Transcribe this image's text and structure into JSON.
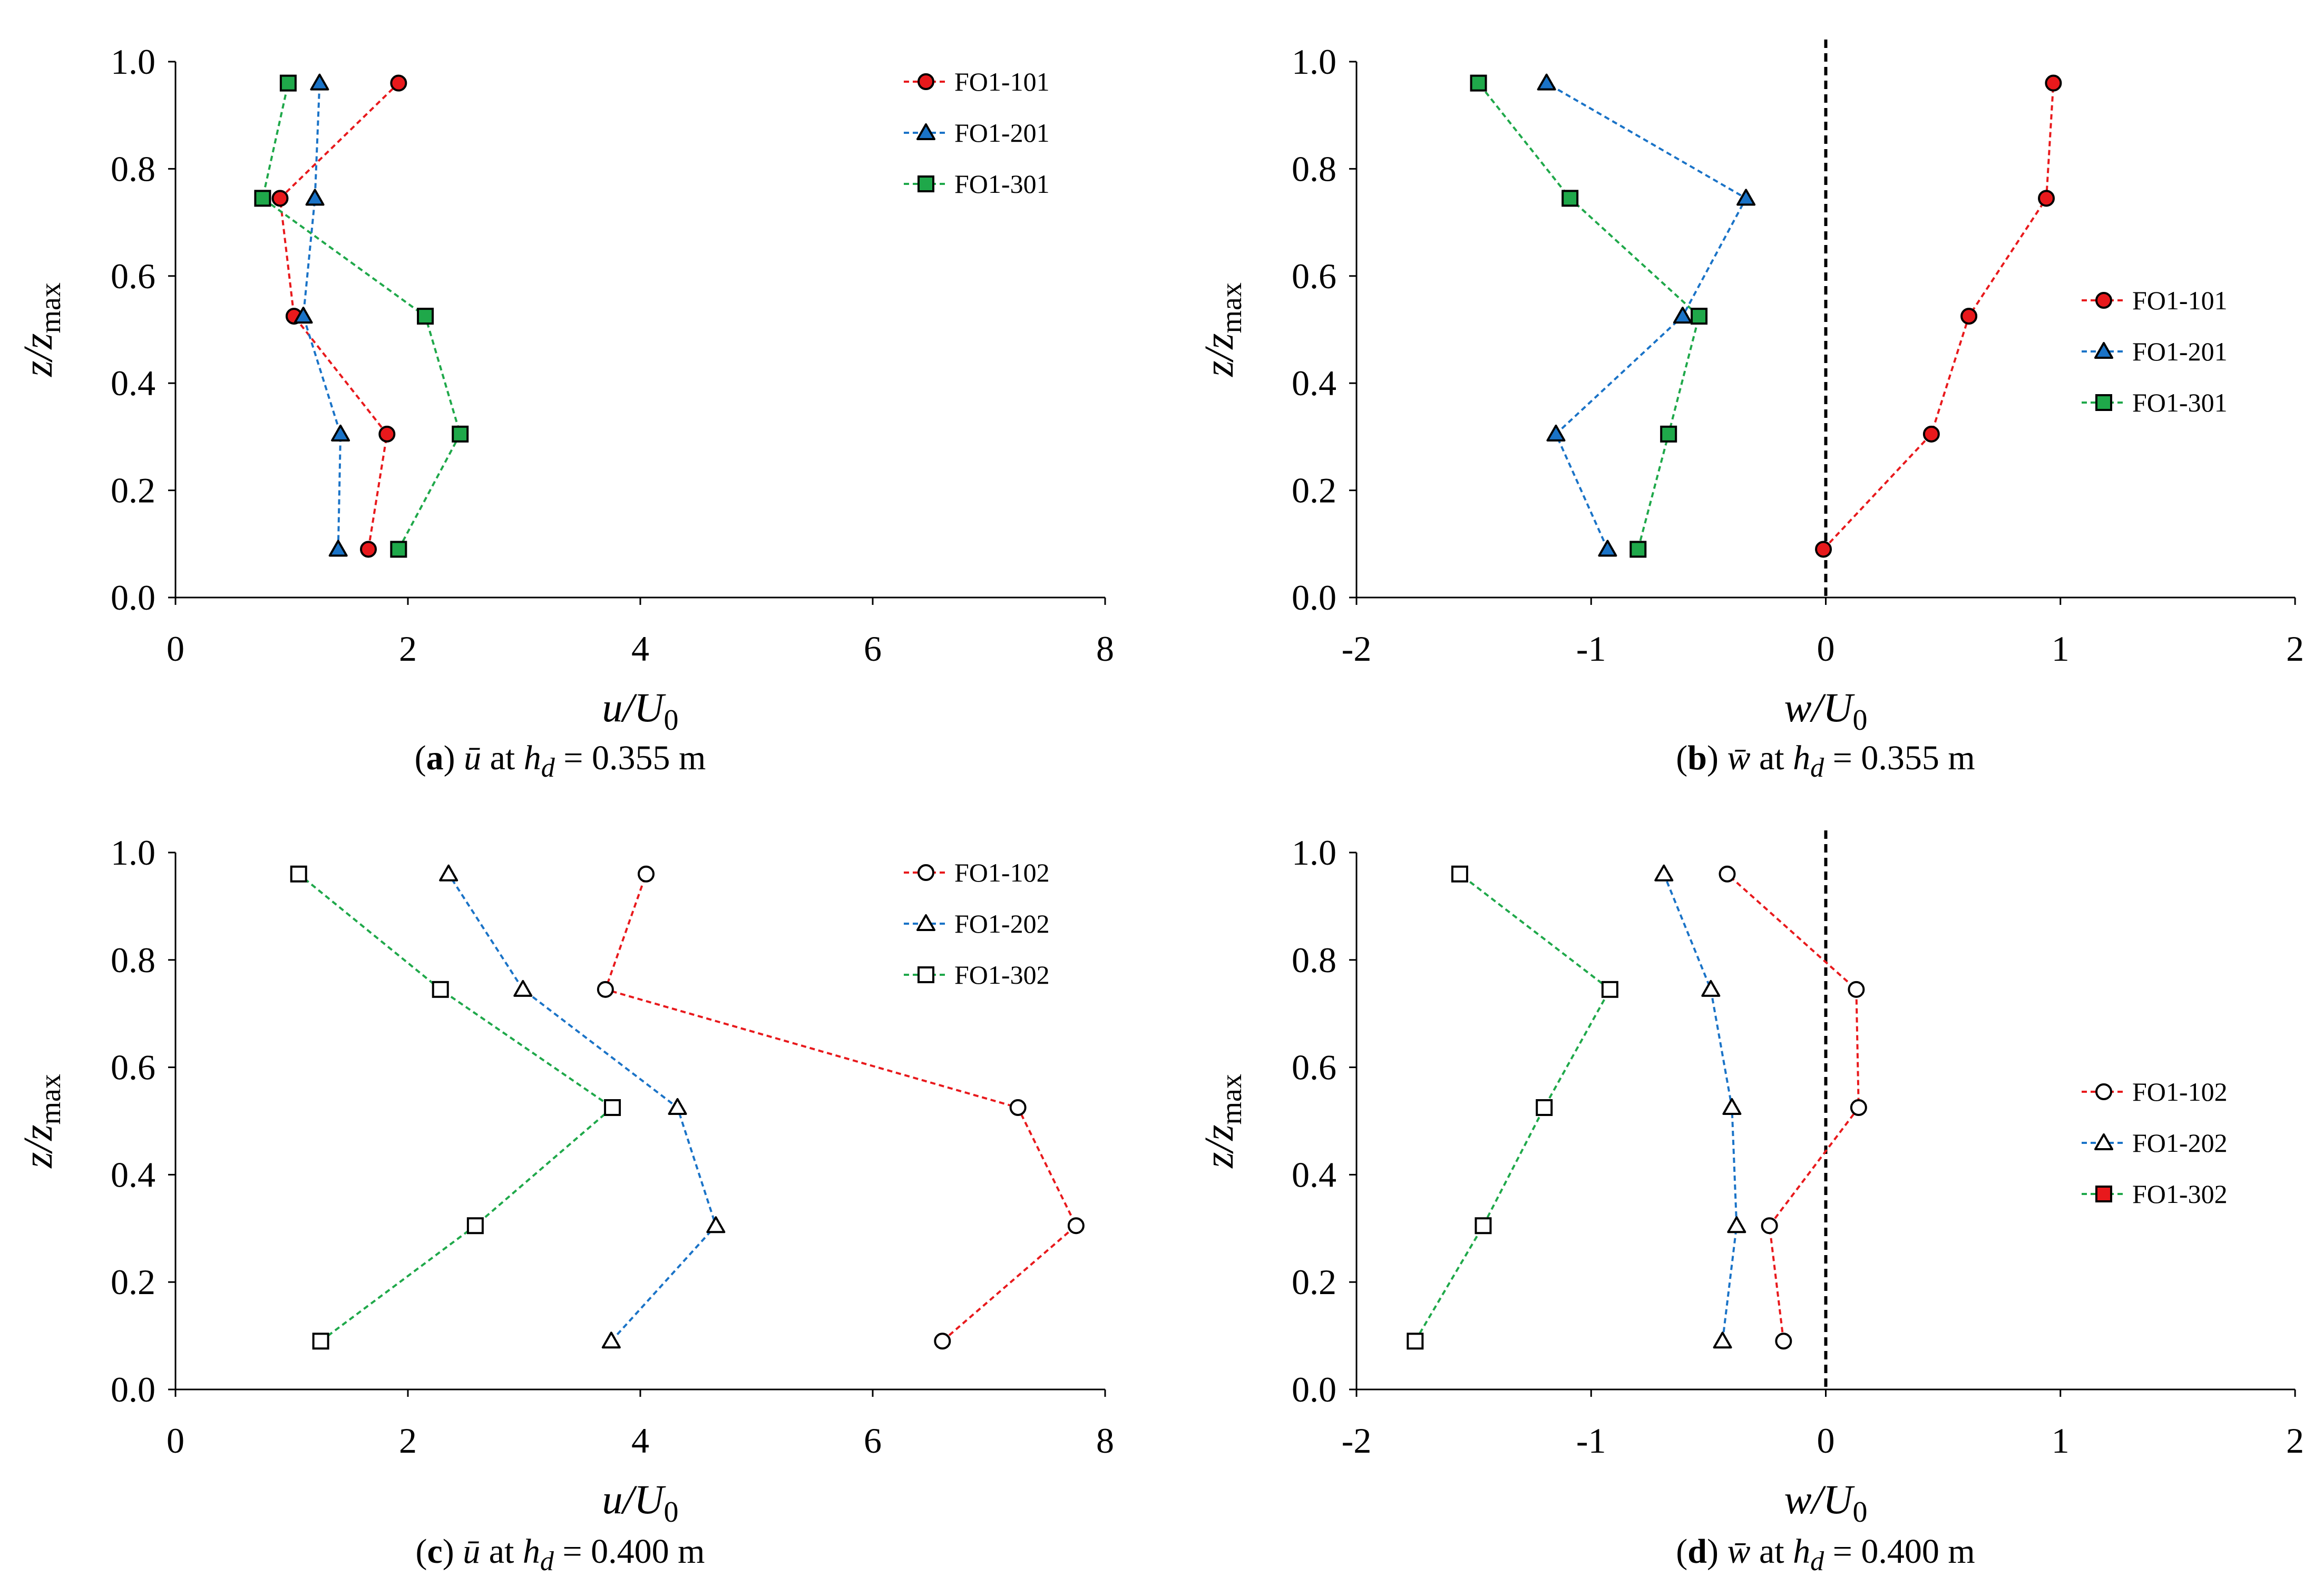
{
  "chart_data": [
    {
      "id": "a",
      "type": "line",
      "marker_style": "filled",
      "xlabel_var": "u",
      "xlabel_den": "U",
      "xlabel_sub": "0",
      "ylabel_var": "z",
      "ylabel_den": "z",
      "ylabel_sub": "max",
      "xlim": [
        0,
        8
      ],
      "ylim": [
        0,
        1.0
      ],
      "xticks": [
        "0",
        "2",
        "4",
        "6",
        "8"
      ],
      "yticks": [
        "0.0",
        "0.2",
        "0.4",
        "0.6",
        "0.8",
        "1.0"
      ],
      "zero_line": false,
      "legend_position": "top-right",
      "caption": {
        "letter": "a",
        "symbol": "ū",
        "at": "at",
        "h": "h",
        "hsub": "d",
        "value": "= 0.355 m"
      },
      "series": [
        {
          "name": "FO1-101",
          "marker": "circle",
          "color": "#e8191c",
          "fill": "#e8191c",
          "line_color": "#e8191c",
          "points": [
            [
              1.66,
              0.09
            ],
            [
              1.82,
              0.305
            ],
            [
              1.02,
              0.525
            ],
            [
              0.9,
              0.745
            ],
            [
              1.92,
              0.96
            ]
          ]
        },
        {
          "name": "FO1-201",
          "marker": "triangle",
          "color": "#1a73c7",
          "fill": "#1a73c7",
          "line_color": "#1a73c7",
          "points": [
            [
              1.4,
              0.09
            ],
            [
              1.42,
              0.305
            ],
            [
              1.1,
              0.525
            ],
            [
              1.2,
              0.745
            ],
            [
              1.24,
              0.96
            ]
          ]
        },
        {
          "name": "FO1-301",
          "marker": "square",
          "color": "#1fa84a",
          "fill": "#1fa84a",
          "line_color": "#1fa84a",
          "points": [
            [
              1.92,
              0.09
            ],
            [
              2.45,
              0.305
            ],
            [
              2.15,
              0.525
            ],
            [
              0.75,
              0.745
            ],
            [
              0.97,
              0.96
            ]
          ]
        }
      ]
    },
    {
      "id": "b",
      "type": "line",
      "marker_style": "filled",
      "xlabel_var": "w",
      "xlabel_den": "U",
      "xlabel_sub": "0",
      "ylabel_var": "z",
      "ylabel_den": "z",
      "ylabel_sub": "max",
      "xlim": [
        -2,
        2
      ],
      "ylim": [
        0,
        1.0
      ],
      "xticks": [
        "-2",
        "-1",
        "0",
        "1",
        "2"
      ],
      "yticks": [
        "0.0",
        "0.2",
        "0.4",
        "0.6",
        "0.8",
        "1.0"
      ],
      "zero_line": true,
      "legend_position": "right",
      "caption": {
        "letter": "b",
        "symbol": "w̄",
        "at": "at",
        "h": "h",
        "hsub": "d",
        "value": "= 0.355 m"
      },
      "series": [
        {
          "name": "FO1-101",
          "marker": "circle",
          "color": "#e8191c",
          "fill": "#e8191c",
          "line_color": "#e8191c",
          "points": [
            [
              -0.01,
              0.09
            ],
            [
              0.45,
              0.305
            ],
            [
              0.61,
              0.525
            ],
            [
              0.94,
              0.745
            ],
            [
              0.97,
              0.96
            ]
          ]
        },
        {
          "name": "FO1-201",
          "marker": "triangle",
          "color": "#1a73c7",
          "fill": "#1a73c7",
          "line_color": "#1a73c7",
          "points": [
            [
              -0.93,
              0.09
            ],
            [
              -1.15,
              0.305
            ],
            [
              -0.61,
              0.525
            ],
            [
              -0.34,
              0.745
            ],
            [
              -1.19,
              0.96
            ]
          ]
        },
        {
          "name": "FO1-301",
          "marker": "square",
          "color": "#1fa84a",
          "fill": "#1fa84a",
          "line_color": "#1fa84a",
          "points": [
            [
              -0.8,
              0.09
            ],
            [
              -0.67,
              0.305
            ],
            [
              -0.54,
              0.525
            ],
            [
              -1.09,
              0.745
            ],
            [
              -1.48,
              0.96
            ]
          ]
        }
      ]
    },
    {
      "id": "c",
      "type": "line",
      "marker_style": "hollow",
      "xlabel_var": "u",
      "xlabel_den": "U",
      "xlabel_sub": "0",
      "ylabel_var": "z",
      "ylabel_den": "z",
      "ylabel_sub": "max",
      "xlim": [
        0,
        8
      ],
      "ylim": [
        0,
        1.0
      ],
      "xticks": [
        "0",
        "2",
        "4",
        "6",
        "8"
      ],
      "yticks": [
        "0.0",
        "0.2",
        "0.4",
        "0.6",
        "0.8",
        "1.0"
      ],
      "zero_line": false,
      "legend_position": "top-right",
      "caption": {
        "letter": "c",
        "symbol": "ū",
        "at": "at",
        "h": "h",
        "hsub": "d",
        "value": "= 0.400 m"
      },
      "series": [
        {
          "name": "FO1-102",
          "marker": "circle",
          "color": "#000000",
          "fill": "#ffffff",
          "line_color": "#e8191c",
          "points": [
            [
              6.6,
              0.09
            ],
            [
              7.75,
              0.305
            ],
            [
              7.25,
              0.525
            ],
            [
              3.7,
              0.745
            ],
            [
              4.05,
              0.96
            ]
          ]
        },
        {
          "name": "FO1-202",
          "marker": "triangle",
          "color": "#000000",
          "fill": "#ffffff",
          "line_color": "#1a73c7",
          "points": [
            [
              3.75,
              0.09
            ],
            [
              4.65,
              0.305
            ],
            [
              4.32,
              0.525
            ],
            [
              2.99,
              0.745
            ],
            [
              2.35,
              0.96
            ]
          ]
        },
        {
          "name": "FO1-302",
          "marker": "square",
          "color": "#000000",
          "fill": "#ffffff",
          "line_color": "#1fa84a",
          "points": [
            [
              1.25,
              0.09
            ],
            [
              2.58,
              0.305
            ],
            [
              3.76,
              0.525
            ],
            [
              2.28,
              0.745
            ],
            [
              1.06,
              0.96
            ]
          ]
        }
      ]
    },
    {
      "id": "d",
      "type": "line",
      "marker_style": "hollow",
      "xlabel_var": "w",
      "xlabel_den": "U",
      "xlabel_sub": "0",
      "ylabel_var": "z",
      "ylabel_den": "z",
      "ylabel_sub": "max",
      "xlim": [
        -2,
        2
      ],
      "ylim": [
        0,
        1.0
      ],
      "xticks": [
        "-2",
        "-1",
        "0",
        "1",
        "2"
      ],
      "yticks": [
        "0.0",
        "0.2",
        "0.4",
        "0.6",
        "0.8",
        "1.0"
      ],
      "zero_line": true,
      "legend_position": "right",
      "caption": {
        "letter": "d",
        "symbol": "w̄",
        "at": "at",
        "h": "h",
        "hsub": "d",
        "value": "= 0.400 m"
      },
      "series": [
        {
          "name": "FO1-102",
          "marker": "circle",
          "color": "#000000",
          "fill": "#ffffff",
          "line_color": "#e8191c",
          "points": [
            [
              -0.18,
              0.09
            ],
            [
              -0.24,
              0.305
            ],
            [
              0.14,
              0.525
            ],
            [
              0.13,
              0.745
            ],
            [
              -0.42,
              0.96
            ]
          ]
        },
        {
          "name": "FO1-202",
          "marker": "triangle",
          "color": "#000000",
          "fill": "#ffffff",
          "line_color": "#1a73c7",
          "points": [
            [
              -0.44,
              0.09
            ],
            [
              -0.38,
              0.305
            ],
            [
              -0.4,
              0.525
            ],
            [
              -0.49,
              0.745
            ],
            [
              -0.69,
              0.96
            ]
          ]
        },
        {
          "name": "FO1-302",
          "marker": "square",
          "color": "#000000",
          "fill": "#ffffff",
          "line_color": "#1fa84a",
          "legend_fill": "#e8191c",
          "points": [
            [
              -1.75,
              0.09
            ],
            [
              -1.46,
              0.305
            ],
            [
              -1.2,
              0.525
            ],
            [
              -0.92,
              0.745
            ],
            [
              -1.56,
              0.96
            ]
          ]
        }
      ]
    }
  ]
}
